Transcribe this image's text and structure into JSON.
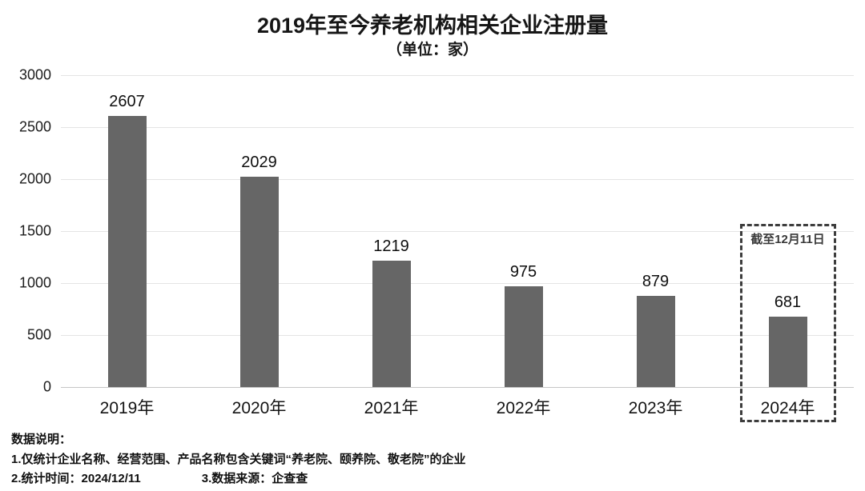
{
  "chart_data": {
    "type": "bar",
    "title": "2019年至今养老机构相关企业注册量",
    "subtitle": "（单位：家）",
    "categories": [
      "2019年",
      "2020年",
      "2021年",
      "2022年",
      "2023年",
      "2024年"
    ],
    "values": [
      2607,
      2029,
      1219,
      975,
      879,
      681
    ],
    "ylim": [
      0,
      3000
    ],
    "yticks": [
      0,
      500,
      1000,
      1500,
      2000,
      2500,
      3000
    ],
    "grid": true,
    "legend": "none",
    "bar_color": "#666666",
    "annotation": {
      "text": "截至12月11日",
      "target": "2024年",
      "style": "dashed-box"
    }
  },
  "footer": {
    "heading": "数据说明：",
    "note1": "1.仅统计企业名称、经营范围、产品名称包含关键词“养老院、颐养院、敬老院”的企业",
    "note2": "2.统计时间：2024/12/11",
    "note3": "3.数据来源：企查查"
  }
}
